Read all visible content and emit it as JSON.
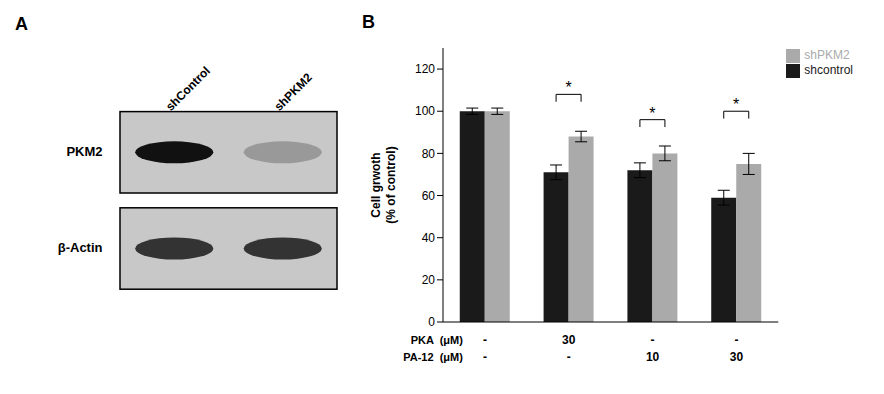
{
  "chart_data": [
    {
      "type": "western_blot",
      "title": "A",
      "categories": [
        "shControl",
        "shPKM2"
      ],
      "color": "#c8c8c8",
      "series": [
        {
          "name": "PKM2",
          "colors": [
            "#111111",
            "#999999"
          ]
        },
        {
          "name": "β-Actin",
          "colors": [
            "#333333",
            "#333333"
          ]
        }
      ]
    },
    {
      "type": "bar",
      "title": "B",
      "ylabel": "Cell grwoth\n(% of control)",
      "xlabel": [
        "PKA  (μM)",
        "PA-12  (μM)"
      ],
      "categories": [
        [
          "-",
          "-"
        ],
        [
          "30",
          "-"
        ],
        [
          "-",
          "10"
        ],
        [
          "-",
          "30"
        ]
      ],
      "series": [
        {
          "name": "shcontrol",
          "color": "#1a1a1a",
          "values": [
            100,
            71,
            72,
            59
          ],
          "errors": [
            1.5,
            3.5,
            3.5,
            3.5
          ]
        },
        {
          "name": "shPKM2",
          "color": "#aaaaaa",
          "values": [
            100,
            88,
            80,
            75
          ],
          "errors": [
            1.5,
            2.5,
            3.5,
            5.0
          ]
        }
      ],
      "ylim": [
        0,
        130
      ],
      "yticks": [
        0,
        20,
        40,
        60,
        80,
        100,
        120
      ],
      "legend": "upper right",
      "annotations": [
        {
          "text": "*",
          "x": 1,
          "y": 108
        },
        {
          "text": "*",
          "x": 2,
          "y": 96
        },
        {
          "text": "*",
          "x": 3,
          "y": 100
        }
      ]
    }
  ]
}
